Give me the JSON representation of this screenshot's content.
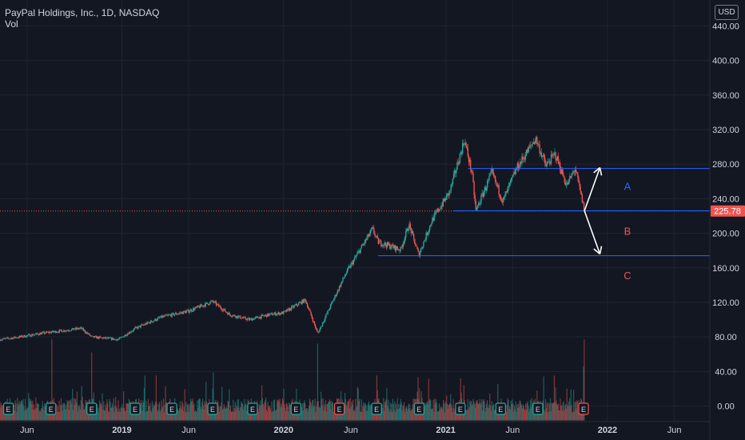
{
  "header": {
    "symbol": "PayPal Holdings, Inc., 1D, NASDAQ",
    "indicator": "Vol",
    "currency": "USD"
  },
  "colors": {
    "background": "#131722",
    "grid": "#1f2433",
    "up": "#26a69a",
    "down": "#ef5350",
    "level": "#2962ff",
    "arrow": "#ffffff",
    "label_a": "#2962ff",
    "label_bc": "#ef5350",
    "price_tag": "#ef5350",
    "axis_text": "#d1d4dc"
  },
  "chart_data": {
    "type": "candlestick",
    "x_range": [
      "2018-04-01",
      "2022-08-20"
    ],
    "y_range": [
      -18,
      470
    ],
    "y_ticks": [
      "440.00",
      "400.00",
      "360.00",
      "320.00",
      "280.00",
      "240.00",
      "200.00",
      "160.00",
      "120.00",
      "80.00",
      "40.00",
      "0.00"
    ],
    "x_ticks": [
      {
        "label": "Jun",
        "date": "2018-06-01"
      },
      {
        "label": "2019",
        "date": "2019-01-01"
      },
      {
        "label": "Jun",
        "date": "2019-06-01"
      },
      {
        "label": "2020",
        "date": "2020-01-01"
      },
      {
        "label": "Jun",
        "date": "2020-06-01"
      },
      {
        "label": "2021",
        "date": "2021-01-01"
      },
      {
        "label": "Jun",
        "date": "2021-06-01"
      },
      {
        "label": "2022",
        "date": "2022-01-01"
      },
      {
        "label": "Jun",
        "date": "2022-06-01"
      }
    ],
    "last_price": 225.78,
    "price_path": [
      [
        "2018-04-01",
        77
      ],
      [
        "2018-05-15",
        80
      ],
      [
        "2018-07-01",
        84
      ],
      [
        "2018-09-01",
        88
      ],
      [
        "2018-10-01",
        90
      ],
      [
        "2018-10-25",
        80
      ],
      [
        "2018-12-24",
        77
      ],
      [
        "2019-02-01",
        90
      ],
      [
        "2019-04-01",
        103
      ],
      [
        "2019-06-01",
        110
      ],
      [
        "2019-07-25",
        121
      ],
      [
        "2019-09-01",
        106
      ],
      [
        "2019-10-15",
        100
      ],
      [
        "2019-12-01",
        106
      ],
      [
        "2020-01-01",
        108
      ],
      [
        "2020-02-19",
        123
      ],
      [
        "2020-03-18",
        84
      ],
      [
        "2020-04-15",
        115
      ],
      [
        "2020-05-20",
        153
      ],
      [
        "2020-07-07",
        194
      ],
      [
        "2020-07-20",
        205
      ],
      [
        "2020-08-01",
        190
      ],
      [
        "2020-09-21",
        181
      ],
      [
        "2020-10-10",
        210
      ],
      [
        "2020-11-01",
        175
      ],
      [
        "2020-12-01",
        215
      ],
      [
        "2021-01-10",
        248
      ],
      [
        "2021-02-12",
        308
      ],
      [
        "2021-03-01",
        270
      ],
      [
        "2021-03-10",
        226
      ],
      [
        "2021-04-15",
        270
      ],
      [
        "2021-05-10",
        237
      ],
      [
        "2021-06-10",
        275
      ],
      [
        "2021-07-23",
        310
      ],
      [
        "2021-08-15",
        278
      ],
      [
        "2021-09-05",
        292
      ],
      [
        "2021-10-01",
        255
      ],
      [
        "2021-10-20",
        275
      ],
      [
        "2021-11-10",
        226
      ]
    ],
    "volume_spikes": [
      [
        "2018-07-27",
        88
      ],
      [
        "2018-10-25",
        85
      ],
      [
        "2019-07-26",
        80
      ],
      [
        "2020-03-18",
        96
      ],
      [
        "2020-07-30",
        75
      ],
      [
        "2020-10-30",
        72
      ],
      [
        "2021-02-04",
        70
      ],
      [
        "2021-11-09",
        135
      ]
    ],
    "levels": [
      {
        "from": "2021-02-20",
        "to": "2022-08-20",
        "price": 275
      },
      {
        "from": "2021-01-20",
        "to": "2022-08-20",
        "price": 226
      },
      {
        "from": "2020-08-01",
        "to": "2022-08-20",
        "price": 174
      }
    ],
    "arrows": [
      {
        "from": [
          "2021-11-10",
          226
        ],
        "to": [
          "2021-12-15",
          276
        ]
      },
      {
        "from": [
          "2021-11-10",
          226
        ],
        "to": [
          "2021-12-15",
          176
        ]
      }
    ],
    "zone_labels": [
      {
        "text": "A",
        "date": "2022-02-15",
        "price": 250
      },
      {
        "text": "B",
        "date": "2022-02-15",
        "price": 198
      },
      {
        "text": "C",
        "date": "2022-02-15",
        "price": 147
      }
    ],
    "earnings_markers": [
      {
        "date": "2018-04-20",
        "label": "E",
        "color": "up"
      },
      {
        "date": "2018-07-25",
        "label": "E",
        "color": "up"
      },
      {
        "date": "2018-10-25",
        "label": "E",
        "color": "up"
      },
      {
        "date": "2019-01-31",
        "label": "E",
        "color": "up"
      },
      {
        "date": "2019-04-24",
        "label": "E",
        "color": "up"
      },
      {
        "date": "2019-07-25",
        "label": "E",
        "color": "up"
      },
      {
        "date": "2019-10-23",
        "label": "E",
        "color": "up"
      },
      {
        "date": "2020-01-29",
        "label": "E",
        "color": "up"
      },
      {
        "date": "2020-05-06",
        "label": "E",
        "color": "down"
      },
      {
        "date": "2020-07-29",
        "label": "E",
        "color": "up"
      },
      {
        "date": "2020-11-02",
        "label": "E",
        "color": "up"
      },
      {
        "date": "2021-02-03",
        "label": "E",
        "color": "up"
      },
      {
        "date": "2021-05-05",
        "label": "E",
        "color": "up"
      },
      {
        "date": "2021-07-28",
        "label": "E",
        "color": "up"
      },
      {
        "date": "2021-11-08",
        "label": "E",
        "color": "down"
      }
    ]
  }
}
